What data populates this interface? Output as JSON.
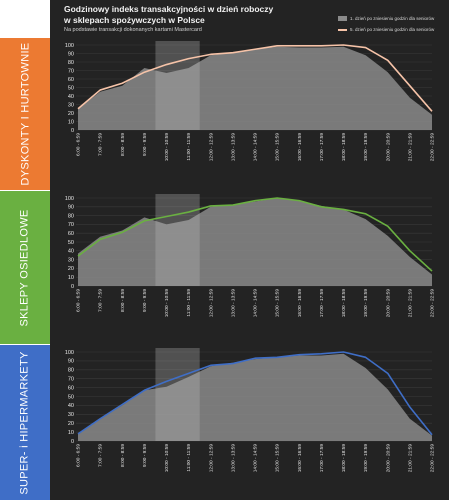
{
  "title_line1": "Godzinowy indeks transakcyjności w dzień roboczy",
  "title_line2": "w sklepach spożywczych w Polsce",
  "subtitle": "Na podstawie transakcji dokonanych kartami Mastercard",
  "legend": {
    "area": "1. dzień po zniesieniu godzin dla seniorów",
    "line": "5. dzień po zniesieniu godzin dla seniorów"
  },
  "colors": {
    "background": "#232323",
    "area": "#8a8a8a",
    "highlight_band": "#bdbdbd",
    "dyskonty": "#ec7a32",
    "osiedlowe": "#6ab041",
    "hiper": "#3f6ec7",
    "dyskonty_line": "#f6c3a8"
  },
  "chart_data": [
    {
      "type": "area",
      "panel_label": "DYSKONTY I HURTOWNIE",
      "categories": [
        "6:00 - 6:59",
        "7:00 - 7:59",
        "8:00 - 8:59",
        "9:00 - 9:59",
        "10:00 - 10:59",
        "11:00 - 11:59",
        "12:00 - 12:59",
        "13:00 - 13:59",
        "14:00 - 14:59",
        "15:00 - 15:59",
        "16:00 - 16:59",
        "17:00 - 17:59",
        "18:00 - 18:59",
        "19:00 - 19:59",
        "20:00 - 20:59",
        "21:00 - 21:59",
        "22:00 - 22:59"
      ],
      "series": [
        {
          "name": "1. dzień po zniesieniu godzin dla seniorów",
          "type": "area",
          "values": [
            25,
            45,
            52,
            73,
            67,
            73,
            88,
            91,
            95,
            98,
            97,
            97,
            98,
            88,
            68,
            38,
            18
          ]
        },
        {
          "name": "5. dzień po zniesieniu godzin dla seniorów",
          "type": "line",
          "values": [
            25,
            47,
            55,
            68,
            77,
            84,
            89,
            91,
            95,
            99,
            99,
            99,
            100,
            97,
            82,
            52,
            22
          ]
        }
      ],
      "highlight": {
        "from": "10:00 - 10:59",
        "to": "11:00 - 11:59"
      },
      "ylim": [
        0,
        100
      ],
      "yticks": [
        0,
        10,
        20,
        30,
        40,
        50,
        60,
        70,
        80,
        90,
        100
      ]
    },
    {
      "type": "area",
      "panel_label": "SKLEPY OSIEDLOWE",
      "categories": [
        "6:00 - 6:59",
        "7:00 - 7:59",
        "8:00 - 8:59",
        "9:00 - 9:59",
        "10:00 - 10:59",
        "11:00 - 11:59",
        "12:00 - 12:59",
        "13:00 - 13:59",
        "14:00 - 14:59",
        "15:00 - 15:59",
        "16:00 - 16:59",
        "17:00 - 17:59",
        "18:00 - 18:59",
        "19:00 - 19:59",
        "20:00 - 20:59",
        "21:00 - 21:59",
        "22:00 - 22:59"
      ],
      "series": [
        {
          "name": "1. dzień po zniesieniu godzin dla seniorów",
          "type": "area",
          "values": [
            37,
            56,
            63,
            78,
            70,
            75,
            90,
            92,
            96,
            100,
            97,
            91,
            87,
            76,
            57,
            33,
            13
          ]
        },
        {
          "name": "5. dzień po zniesieniu godzin dla seniorów",
          "type": "line",
          "values": [
            34,
            53,
            61,
            74,
            79,
            84,
            91,
            92,
            97,
            100,
            97,
            90,
            87,
            82,
            68,
            40,
            17
          ]
        }
      ],
      "highlight": {
        "from": "10:00 - 10:59",
        "to": "11:00 - 11:59"
      },
      "ylim": [
        0,
        100
      ],
      "yticks": [
        0,
        10,
        20,
        30,
        40,
        50,
        60,
        70,
        80,
        90,
        100
      ]
    },
    {
      "type": "area",
      "panel_label": "SUPER- i HIPERMARKETY",
      "categories": [
        "6:00 - 6:59",
        "7:00 - 7:59",
        "8:00 - 8:59",
        "9:00 - 9:59",
        "10:00 - 10:59",
        "11:00 - 11:59",
        "12:00 - 12:59",
        "13:00 - 13:59",
        "14:00 - 14:59",
        "15:00 - 15:59",
        "16:00 - 16:59",
        "17:00 - 17:59",
        "18:00 - 18:59",
        "19:00 - 19:59",
        "20:00 - 20:59",
        "21:00 - 21:59",
        "22:00 - 22:59"
      ],
      "series": [
        {
          "name": "1. dzień po zniesieniu godzin dla seniorów",
          "type": "area",
          "values": [
            8,
            25,
            40,
            57,
            61,
            72,
            84,
            88,
            92,
            94,
            96,
            96,
            98,
            82,
            58,
            25,
            6
          ]
        },
        {
          "name": "5. dzień po zniesieniu godzin dla seniorów",
          "type": "line",
          "values": [
            8,
            25,
            41,
            57,
            67,
            76,
            85,
            87,
            93,
            94,
            97,
            98,
            100,
            94,
            76,
            38,
            7
          ]
        }
      ],
      "highlight": {
        "from": "10:00 - 10:59",
        "to": "11:00 - 11:59"
      },
      "ylim": [
        0,
        100
      ],
      "yticks": [
        0,
        10,
        20,
        30,
        40,
        50,
        60,
        70,
        80,
        90,
        100
      ]
    }
  ]
}
